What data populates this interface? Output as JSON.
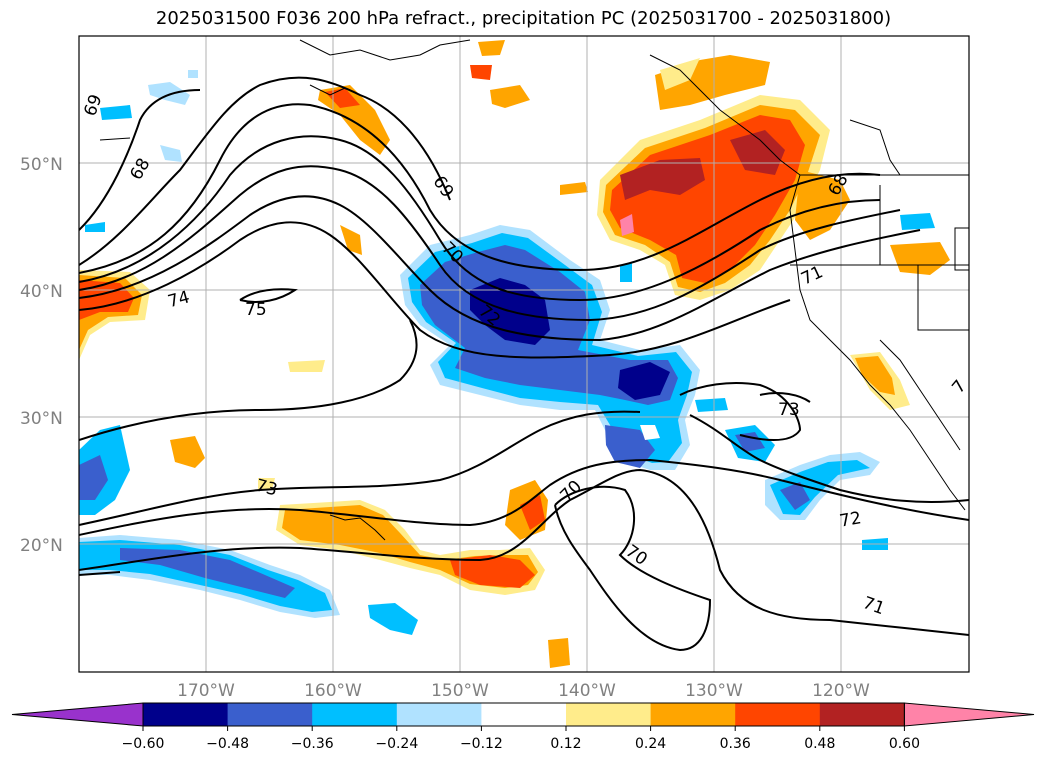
{
  "title": "2025031500 F036 200 hPa refract., precipitation PC (2025031700 - 2025031800)",
  "map": {
    "lon_range": [
      -180,
      -110
    ],
    "lat_range": [
      10,
      60
    ],
    "lon_ticks": [
      "170°W",
      "160°W",
      "150°W",
      "140°W",
      "130°W",
      "120°W"
    ],
    "lat_ticks": [
      "50°N",
      "40°N",
      "30°N",
      "20°N"
    ],
    "grid": true
  },
  "colorbar": {
    "levels": [
      "−0.60",
      "−0.48",
      "−0.36",
      "−0.24",
      "−0.12",
      "0.12",
      "0.24",
      "0.36",
      "0.48",
      "0.60"
    ],
    "colors": [
      "#9932cc",
      "#00008b",
      "#3a5fcd",
      "#00bfff",
      "#b0e2ff",
      "#ffffff",
      "#ffec8b",
      "#ffa500",
      "#ff4500",
      "#b22222",
      "#ff83a8"
    ]
  },
  "contour_labels": [
    "69",
    "68",
    "74",
    "75",
    "69",
    "70",
    "72",
    "71",
    "73",
    "73",
    "70",
    "70",
    "72",
    "71",
    "68",
    "7"
  ]
}
